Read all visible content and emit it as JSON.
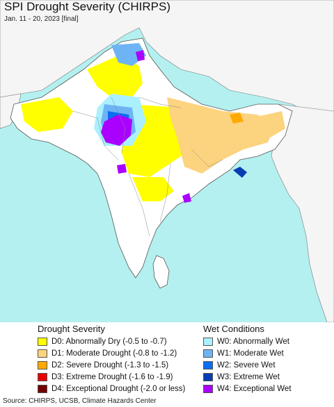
{
  "header": {
    "title": "SPI Drought Severity (CHIRPS)",
    "subtitle": "Jan. 11 - 20, 2023 [final]"
  },
  "map": {
    "ocean_color": "#b4f0f0",
    "land_color": "#ffffff",
    "neighbor_land_color": "#f5f5f5"
  },
  "legend": {
    "drought": {
      "title": "Drought Severity",
      "items": [
        {
          "label": "D0: Abnormally Dry (-0.5 to -0.7)",
          "color": "#ffff00"
        },
        {
          "label": "D1: Moderate Drought (-0.8 to -1.2)",
          "color": "#fcd37f"
        },
        {
          "label": "D2: Severe Drought (-1.3 to -1.5)",
          "color": "#ffaa00"
        },
        {
          "label": "D3: Extreme Drought (-1.6 to -1.9)",
          "color": "#e60000"
        },
        {
          "label": "D4: Exceptional Drought (-2.0 or less)",
          "color": "#730000"
        }
      ]
    },
    "wet": {
      "title": "Wet Conditions",
      "items": [
        {
          "label": "W0: Abnormally Wet",
          "color": "#aaf0ff"
        },
        {
          "label": "W1: Moderate Wet",
          "color": "#6eb4f5"
        },
        {
          "label": "W2: Severe Wet",
          "color": "#0a6ef0"
        },
        {
          "label": "W3: Extreme Wet",
          "color": "#0a3cb4"
        },
        {
          "label": "W4: Exceptional Wet",
          "color": "#aa00ff"
        }
      ]
    }
  },
  "footer": {
    "source": "Source: CHIRPS, UCSB, Climate Hazards Center"
  }
}
